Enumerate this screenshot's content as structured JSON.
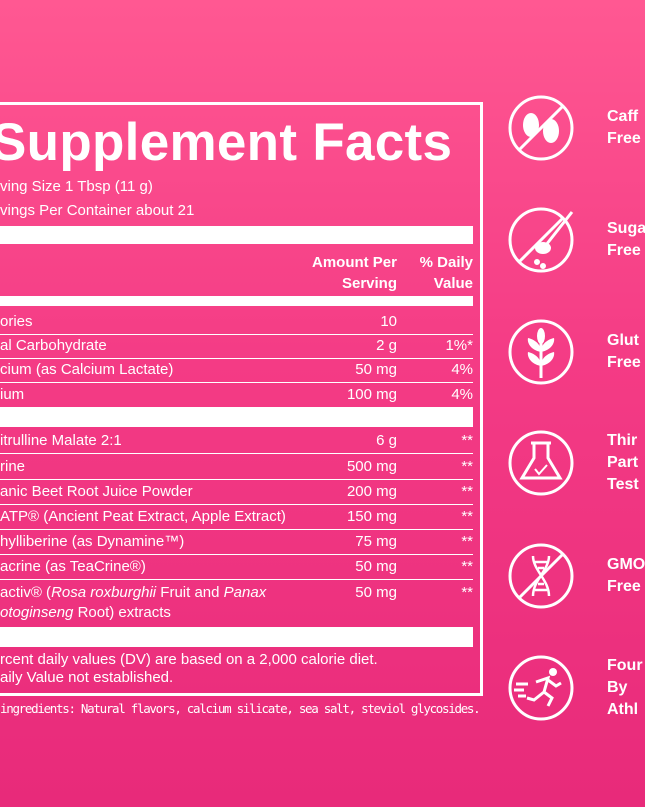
{
  "label": {
    "title": "Supplement Facts",
    "serving_size": "ving Size 1 Tbsp (11 g)",
    "servings": "vings Per Container about 21",
    "header": {
      "amount": [
        "Amount Per",
        "Serving"
      ],
      "dv": [
        "% Daily",
        "Value"
      ]
    },
    "rows": [
      {
        "name": "ories",
        "amount": "10",
        "dv": ""
      },
      {
        "name": "al Carbohydrate",
        "amount": "2 g",
        "dv": "1%*"
      },
      {
        "name": "cium (as Calcium Lactate)",
        "amount": "50 mg",
        "dv": "4%"
      },
      {
        "name": "ium",
        "amount": "100 mg",
        "dv": "4%"
      },
      {
        "name": "itrulline Malate 2:1",
        "amount": "6 g",
        "dv": "**"
      },
      {
        "name": "rine",
        "amount": "500 mg",
        "dv": "**"
      },
      {
        "name": "anic Beet Root Juice Powder",
        "amount": "200 mg",
        "dv": "**"
      },
      {
        "name": "ATP® (Ancient Peat Extract, Apple Extract)",
        "amount": "150 mg",
        "dv": "**"
      },
      {
        "name": "hylliberine (as Dynamine™)",
        "amount": "75 mg",
        "dv": "**"
      },
      {
        "name": "acrine (as TeaCrine®)",
        "amount": "50 mg",
        "dv": "**"
      },
      {
        "name_lines": [
          [
            {
              "text": "activ® ("
            },
            {
              "text": "Rosa roxburghii",
              "italic": true
            },
            {
              "text": " Fruit and "
            },
            {
              "text": "Panax",
              "italic": true
            }
          ],
          [
            {
              "text": "otoginseng",
              "italic": true
            },
            {
              "text": " Root) extracts"
            }
          ]
        ],
        "amount": "50 mg",
        "dv": "**"
      }
    ],
    "footnotes": [
      "rcent daily values (DV) are based on a 2,000 calorie diet.",
      "aily Value not established."
    ],
    "other_ingredients": "ingredients: Natural flavors, calcium silicate, sea salt, steviol glycosides."
  },
  "badges": [
    [
      "Caff",
      "Free"
    ],
    [
      "Suga",
      "Free"
    ],
    [
      "Glut",
      "Free"
    ],
    [
      "Thir",
      "Part",
      "Test"
    ],
    [
      "GMO",
      "Free"
    ],
    [
      "Four",
      "By",
      "Athl"
    ]
  ]
}
